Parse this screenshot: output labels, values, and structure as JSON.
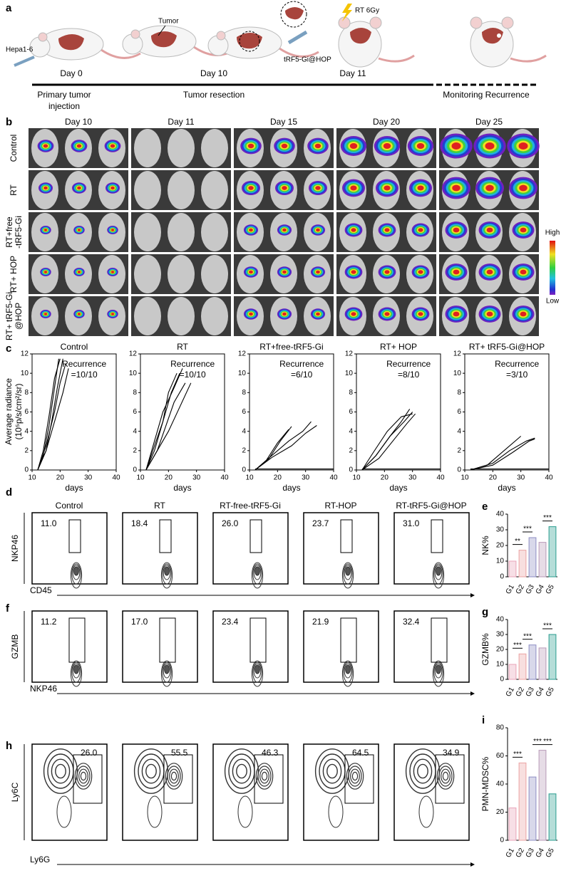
{
  "panel_labels": [
    "a",
    "b",
    "c",
    "d",
    "e",
    "f",
    "g",
    "h",
    "i"
  ],
  "schematic": {
    "agent": "Hepa1-6",
    "tumor": "Tumor",
    "drug": "tRF5-Gi@HOP",
    "radiation": "RT 6Gy",
    "days": [
      "Day 0",
      "Day 10",
      "Day 11"
    ],
    "phases": [
      [
        "Primary tumor",
        "injection"
      ],
      [
        "Tumor resection"
      ],
      [
        "Monitoring Recurrence"
      ]
    ]
  },
  "imaging": {
    "columns": [
      "Day 10",
      "Day 11",
      "Day 15",
      "Day 20",
      "Day 25"
    ],
    "rows": [
      [
        "Control"
      ],
      [
        "RT"
      ],
      [
        "RT+free",
        "-tRF5-Gi"
      ],
      [
        "RT+ HOP"
      ],
      [
        "RT+ tRF5-Gi",
        "@HOP"
      ]
    ],
    "scale": {
      "high": "High",
      "low": "Low"
    }
  },
  "flow": [
    {
      "titles": [
        "Control",
        "RT",
        "RT-free-tRF5-Gi",
        "RT-HOP",
        "RT-tRF5-Gi@HOP"
      ],
      "values": [
        "11.0",
        "18.4",
        "26.0",
        "23.7",
        "31.0"
      ],
      "ylabel": "NKP46",
      "xlabel": "CD45"
    },
    {
      "values": [
        "11.2",
        "17.0",
        "23.4",
        "21.9",
        "32.4"
      ],
      "ylabel": "GZMB",
      "xlabel": "NKP46"
    },
    {
      "values": [
        "26.0",
        "55.5",
        "46.3",
        "64.5",
        "34.9"
      ],
      "ylabel": "Ly6C",
      "xlabel": "Ly6G"
    }
  ],
  "chart_data": [
    {
      "type": "line",
      "title": "Control",
      "annotation": [
        "Recurrence",
        "=10/10"
      ],
      "xlabel": "days",
      "ylabel": [
        "Average radiance",
        "(10⁵p/s/cm²/sr)"
      ],
      "xlim": [
        10,
        40
      ],
      "xticks": [
        10,
        20,
        30,
        40
      ],
      "ylim": [
        0,
        12
      ],
      "yticks": [
        0,
        2,
        4,
        6,
        8,
        10,
        12
      ],
      "color": "#000000",
      "series": [
        {
          "x": [
            12,
            14,
            16,
            18,
            19.5
          ],
          "values": [
            0,
            1.5,
            4.5,
            8.5,
            11.5
          ]
        },
        {
          "x": [
            12,
            14,
            16,
            18,
            20
          ],
          "values": [
            0,
            2,
            5.5,
            9.5,
            11.5
          ]
        },
        {
          "x": [
            12,
            15,
            17,
            19,
            21
          ],
          "values": [
            0,
            2,
            5,
            8.5,
            11.5
          ]
        },
        {
          "x": [
            12,
            15,
            18,
            20,
            22
          ],
          "values": [
            0,
            2.5,
            6,
            9,
            11
          ]
        },
        {
          "x": [
            12,
            15,
            18,
            21,
            23
          ],
          "values": [
            0,
            2,
            5,
            8,
            10.5
          ]
        }
      ]
    },
    {
      "type": "line",
      "title": "RT",
      "annotation": [
        "Recurrence",
        "=10/10"
      ],
      "xlabel": "days",
      "xlim": [
        10,
        40
      ],
      "xticks": [
        10,
        20,
        30,
        40
      ],
      "ylim": [
        0,
        12
      ],
      "yticks": [
        0,
        2,
        4,
        6,
        8,
        10,
        12
      ],
      "color": "#000000",
      "series": [
        {
          "x": [
            12,
            15,
            18,
            20,
            23
          ],
          "values": [
            0,
            2,
            5,
            8,
            10
          ]
        },
        {
          "x": [
            12,
            15,
            18,
            21,
            24
          ],
          "values": [
            0,
            2.5,
            5,
            8,
            10
          ]
        },
        {
          "x": [
            12,
            16,
            19,
            22,
            26
          ],
          "values": [
            0,
            2,
            4.5,
            7,
            9
          ]
        },
        {
          "x": [
            12,
            16,
            20,
            24,
            28
          ],
          "values": [
            0,
            2,
            4,
            6.5,
            9
          ]
        },
        {
          "x": [
            12,
            15,
            18,
            22,
            25
          ],
          "values": [
            0,
            3,
            6,
            8.5,
            10.5
          ]
        }
      ]
    },
    {
      "type": "line",
      "title": "RT+free-tRF5-Gi",
      "annotation": [
        "Recurrence",
        "=6/10"
      ],
      "xlabel": "days",
      "xlim": [
        10,
        40
      ],
      "xticks": [
        10,
        20,
        30,
        40
      ],
      "ylim": [
        0,
        12
      ],
      "yticks": [
        0,
        2,
        4,
        6,
        8,
        10,
        12
      ],
      "color": "#000000",
      "series": [
        {
          "x": [
            12,
            16,
            20,
            24
          ],
          "values": [
            0,
            1,
            2.8,
            4.2
          ]
        },
        {
          "x": [
            12,
            17,
            21,
            25
          ],
          "values": [
            0,
            1.2,
            3,
            4.5
          ]
        },
        {
          "x": [
            12,
            18,
            24,
            29,
            32
          ],
          "values": [
            0,
            1.5,
            3,
            4,
            5
          ]
        },
        {
          "x": [
            12,
            18,
            25,
            30,
            34
          ],
          "values": [
            0,
            1.3,
            2.5,
            3.8,
            4.6
          ]
        },
        {
          "x": [
            12,
            40
          ],
          "values": [
            0.1,
            0.1
          ]
        }
      ]
    },
    {
      "type": "line",
      "title": "RT+ HOP",
      "annotation": [
        "Recurrence",
        "=8/10"
      ],
      "xlabel": "days",
      "xlim": [
        10,
        40
      ],
      "xticks": [
        10,
        20,
        30,
        40
      ],
      "ylim": [
        0,
        12
      ],
      "yticks": [
        0,
        2,
        4,
        6,
        8,
        10,
        12
      ],
      "color": "#000000",
      "series": [
        {
          "x": [
            12,
            17,
            22,
            27,
            30
          ],
          "values": [
            0,
            1.5,
            3.5,
            5,
            6
          ]
        },
        {
          "x": [
            12,
            17,
            22,
            26,
            29
          ],
          "values": [
            0,
            1.5,
            3.5,
            5,
            6.3
          ]
        },
        {
          "x": [
            12,
            18,
            23,
            28,
            31
          ],
          "values": [
            0,
            1.2,
            3,
            4.8,
            5.8
          ]
        },
        {
          "x": [
            12,
            16,
            21,
            26,
            30
          ],
          "values": [
            0,
            1.8,
            4,
            5.5,
            5.8
          ]
        },
        {
          "x": [
            12,
            40
          ],
          "values": [
            0.1,
            0.1
          ]
        }
      ]
    },
    {
      "type": "line",
      "title": "RT+ tRF5-Gi@HOP",
      "annotation": [
        "Recurrence",
        "=3/10"
      ],
      "xlabel": "days",
      "xlim": [
        10,
        40
      ],
      "xticks": [
        10,
        20,
        30,
        40
      ],
      "ylim": [
        0,
        12
      ],
      "yticks": [
        0,
        2,
        4,
        6,
        8,
        10,
        12
      ],
      "color": "#000000",
      "series": [
        {
          "x": [
            12,
            18,
            24,
            30
          ],
          "values": [
            0,
            0.5,
            2,
            3.5
          ]
        },
        {
          "x": [
            12,
            20,
            26,
            32,
            35
          ],
          "values": [
            0,
            0.7,
            2,
            3,
            3.3
          ]
        },
        {
          "x": [
            12,
            20,
            27,
            33,
            35
          ],
          "values": [
            0,
            0.5,
            1.8,
            3,
            3.2
          ]
        },
        {
          "x": [
            12,
            40
          ],
          "values": [
            0.1,
            0.1
          ]
        }
      ]
    },
    {
      "type": "bar",
      "ylabel": "NK%",
      "categories": [
        "G1",
        "G2",
        "G3",
        "G4",
        "G5"
      ],
      "values": [
        10,
        17,
        25,
        22,
        32
      ],
      "colors": [
        "#e9a3b8",
        "#eba3a3",
        "#8e8ec4",
        "#b89ab8",
        "#2a9d8f"
      ],
      "ylim": [
        0,
        40
      ],
      "yticks": [
        0,
        10,
        20,
        30,
        40
      ],
      "significance": [
        {
          "from": "G1",
          "to": "G2",
          "label": "**"
        },
        {
          "from": "G2",
          "to": "G3",
          "label": "***"
        },
        {
          "from": "G4",
          "to": "G5",
          "label": "***"
        }
      ]
    },
    {
      "type": "bar",
      "ylabel": "GZMB%",
      "categories": [
        "G1",
        "G2",
        "G3",
        "G4",
        "G5"
      ],
      "values": [
        10,
        17,
        23,
        21,
        30
      ],
      "colors": [
        "#e9a3b8",
        "#eba3a3",
        "#8e8ec4",
        "#b89ab8",
        "#2a9d8f"
      ],
      "ylim": [
        0,
        40
      ],
      "yticks": [
        0,
        10,
        20,
        30,
        40
      ],
      "significance": [
        {
          "from": "G1",
          "to": "G2",
          "label": "***"
        },
        {
          "from": "G2",
          "to": "G3",
          "label": "***"
        },
        {
          "from": "G4",
          "to": "G5",
          "label": "***"
        }
      ]
    },
    {
      "type": "bar",
      "ylabel": "PMN-MDSC%",
      "categories": [
        "G1",
        "G2",
        "G3",
        "G4",
        "G5"
      ],
      "values": [
        23,
        55,
        45,
        64,
        33
      ],
      "colors": [
        "#e9a3b8",
        "#eba3a3",
        "#8e8ec4",
        "#b89ab8",
        "#2a9d8f"
      ],
      "ylim": [
        0,
        80
      ],
      "yticks": [
        0,
        20,
        40,
        60,
        80
      ],
      "significance": [
        {
          "from": "G1",
          "to": "G2",
          "label": "***"
        },
        {
          "from": "G3",
          "to": "G4",
          "label": "***"
        },
        {
          "from": "G4",
          "to": "G5",
          "label": "***"
        }
      ]
    }
  ]
}
